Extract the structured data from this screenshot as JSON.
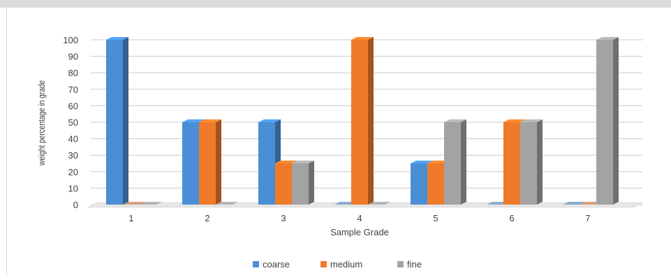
{
  "chart_data": {
    "type": "bar",
    "title": "",
    "xlabel": "Sample Grade",
    "ylabel": "weight percentage in grade",
    "categories": [
      "1",
      "2",
      "3",
      "4",
      "5",
      "6",
      "7"
    ],
    "series": [
      {
        "name": "coarse",
        "color": "#4a8fd6",
        "values": [
          100,
          50,
          50,
          0,
          25,
          0,
          0
        ]
      },
      {
        "name": "medium",
        "color": "#ef7a2a",
        "values": [
          0,
          50,
          25,
          100,
          25,
          50,
          0
        ]
      },
      {
        "name": "fine",
        "color": "#a3a3a3",
        "values": [
          0,
          0,
          25,
          0,
          50,
          50,
          100
        ]
      }
    ],
    "ylim": [
      0,
      100
    ],
    "yticks": [
      0,
      10,
      20,
      30,
      40,
      50,
      60,
      70,
      80,
      90,
      100
    ],
    "grid": true,
    "legend": "bottom",
    "style": "3d-clustered-column"
  }
}
